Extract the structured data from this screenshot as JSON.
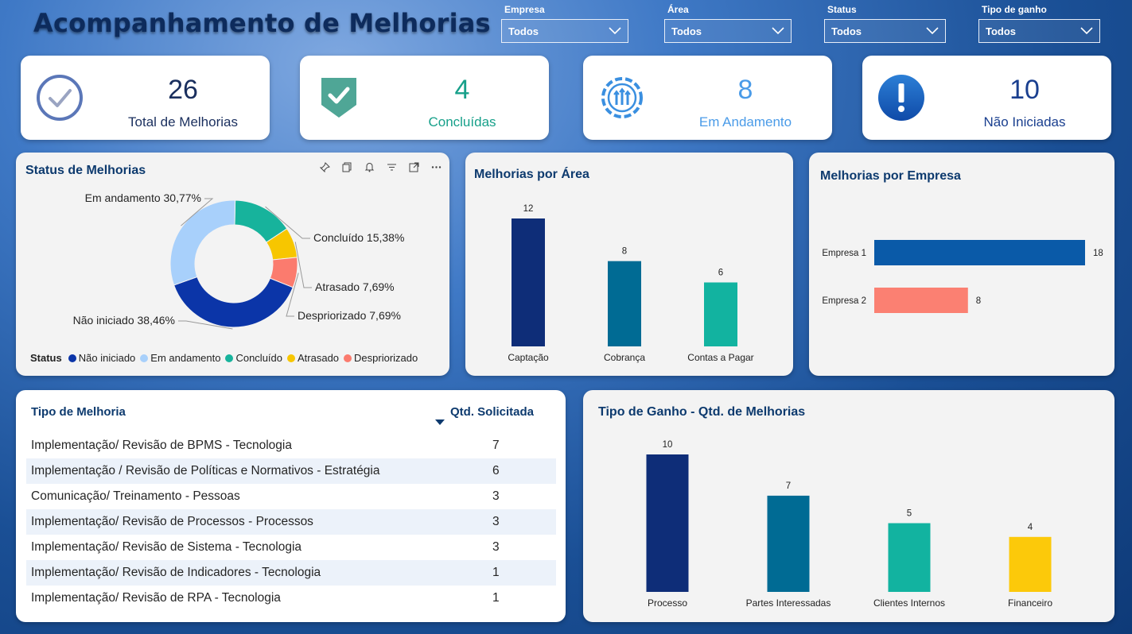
{
  "title": "Acompanhamento de Melhorias",
  "filters": [
    {
      "label": "Empresa",
      "value": "Todos"
    },
    {
      "label": "Área",
      "value": "Todos"
    },
    {
      "label": "Status",
      "value": "Todos"
    },
    {
      "label": "Tipo de ganho",
      "value": "Todos"
    }
  ],
  "kpis": [
    {
      "value": "26",
      "label": "Total de Melhorias",
      "color": "#1a2f5e",
      "icon": "check-circle-icon"
    },
    {
      "value": "4",
      "label": "Concluídas",
      "color": "#17a08a",
      "icon": "shield-check-icon"
    },
    {
      "value": "8",
      "label": "Em Andamento",
      "color": "#4a9be8",
      "icon": "gear-progress-icon"
    },
    {
      "value": "10",
      "label": "Não Iniciadas",
      "color": "#1a3f8f",
      "icon": "exclamation-icon"
    }
  ],
  "status_card": {
    "title": "Status de Melhorias",
    "legend_title": "Status"
  },
  "area_card": {
    "title": "Melhorias por Área"
  },
  "empresa_card": {
    "title": "Melhorias por Empresa"
  },
  "table": {
    "col1": "Tipo de Melhoria",
    "col2": "Qtd. Solicitada",
    "rows": [
      {
        "tipo": "Implementação/ Revisão de BPMS - Tecnologia",
        "qtd": "7"
      },
      {
        "tipo": "Implementação / Revisão de Políticas e Normativos - Estratégia",
        "qtd": "6"
      },
      {
        "tipo": "Comunicação/ Treinamento - Pessoas",
        "qtd": "3"
      },
      {
        "tipo": "Implementação/ Revisão de Processos - Processos",
        "qtd": "3"
      },
      {
        "tipo": "Implementação/ Revisão de Sistema - Tecnologia",
        "qtd": "3"
      },
      {
        "tipo": "Implementação/ Revisão de Indicadores - Tecnologia",
        "qtd": "1"
      },
      {
        "tipo": "Implementação/ Revisão de RPA - Tecnologia",
        "qtd": "1"
      }
    ]
  },
  "ganho_card": {
    "title": "Tipo de Ganho - Qtd. de Melhorias"
  },
  "chart_data": [
    {
      "type": "pie",
      "title": "Status de Melhorias",
      "categories": [
        "Não iniciado",
        "Em andamento",
        "Concluído",
        "Atrasado",
        "Despriorizado"
      ],
      "values": [
        38.46,
        30.77,
        15.38,
        7.69,
        7.69
      ],
      "labels": [
        "Não iniciado 38,46%",
        "Em andamento 30,77%",
        "Concluído 15,38%",
        "Atrasado 7,69%",
        "Despriorizado 7,69%"
      ],
      "colors": [
        "#0b35a8",
        "#a8d0fb",
        "#17b39c",
        "#f7c600",
        "#fb7b6e"
      ],
      "legend": "bottom-left"
    },
    {
      "type": "bar",
      "title": "Melhorias por Área",
      "categories": [
        "Captação",
        "Cobrança",
        "Contas a Pagar"
      ],
      "values": [
        12,
        8,
        6
      ],
      "colors": [
        "#0e2d78",
        "#006b94",
        "#12b3a0"
      ]
    },
    {
      "type": "bar",
      "orientation": "horizontal",
      "title": "Melhorias por Empresa",
      "categories": [
        "Empresa 1",
        "Empresa 2"
      ],
      "values": [
        18,
        8
      ],
      "colors": [
        "#0a5aa8",
        "#fb8072"
      ]
    },
    {
      "type": "bar",
      "title": "Tipo de Ganho - Qtd. de Melhorias",
      "categories": [
        "Processo",
        "Partes Interessadas",
        "Clientes Internos",
        "Financeiro"
      ],
      "values": [
        10,
        7,
        5,
        4
      ],
      "colors": [
        "#0e2d78",
        "#006b94",
        "#12b3a0",
        "#fcc90a"
      ]
    }
  ]
}
